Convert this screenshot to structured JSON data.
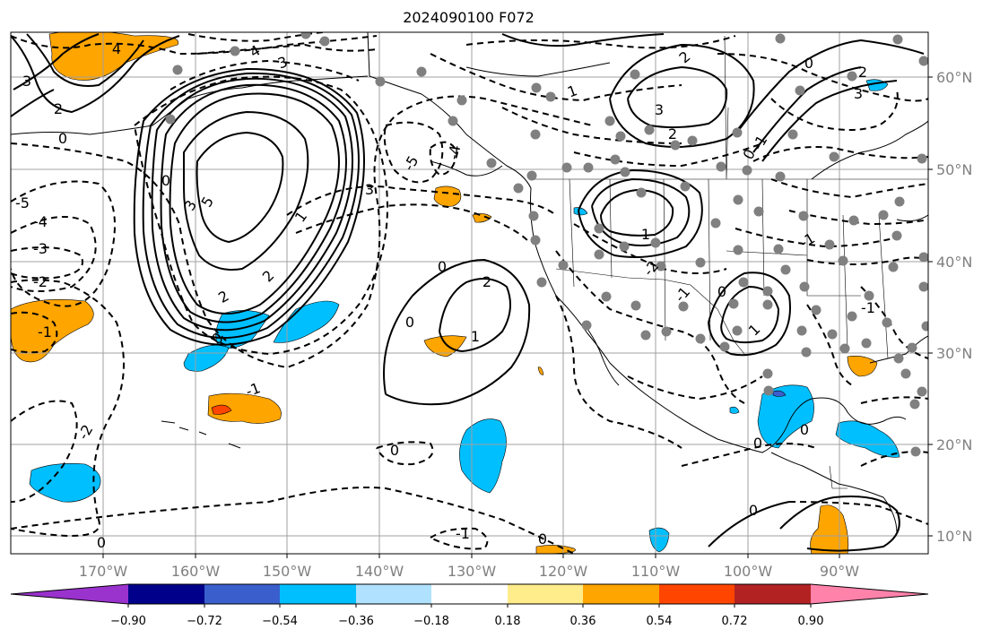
{
  "title": "2024090100 F072",
  "map": {
    "lon_labels": [
      "170°W",
      "160°W",
      "150°W",
      "140°W",
      "130°W",
      "120°W",
      "110°W",
      "100°W",
      "90°W"
    ],
    "lat_labels": [
      "60°N",
      "50°N",
      "40°N",
      "30°N",
      "20°N",
      "10°N"
    ],
    "contour_labels": [
      "5",
      "4",
      "3",
      "2",
      "1",
      "0",
      "-1",
      "-2",
      "-3",
      "-4",
      "-5"
    ]
  },
  "colorbar": {
    "ticks": [
      "−0.90",
      "−0.72",
      "−0.54",
      "−0.36",
      "−0.18",
      "0.18",
      "0.36",
      "0.54",
      "0.72",
      "0.90"
    ],
    "colors": [
      "#9a32cd",
      "#00008b",
      "#3a5fcd",
      "#00bfff",
      "#b0e2ff",
      "#ffffff",
      "#ffec8b",
      "#ffa500",
      "#ff4500",
      "#b22222",
      "#ff82ab"
    ]
  }
}
